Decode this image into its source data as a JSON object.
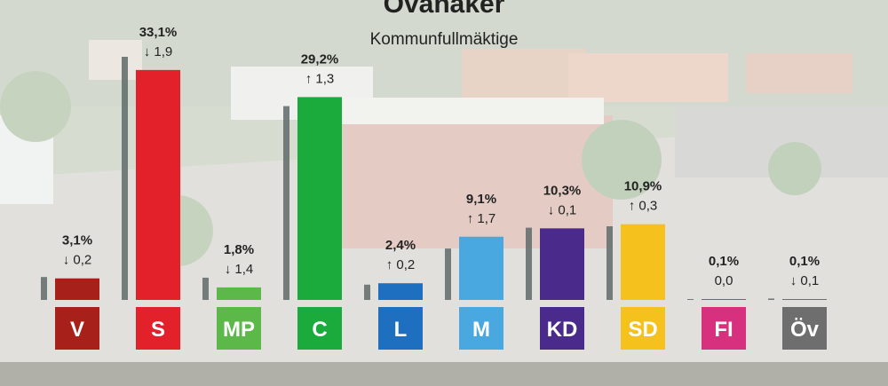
{
  "header": {
    "title": "Ovanåker",
    "subtitle": "Kommunfullmäktige"
  },
  "colors": {
    "overlay": "#ffffff",
    "prev_bar": "#5f6a6a",
    "text": "#222222"
  },
  "chart_data": {
    "type": "bar",
    "title": "Ovanåker",
    "subtitle": "Kommunfullmäktige",
    "categories": [
      "V",
      "S",
      "MP",
      "C",
      "L",
      "M",
      "KD",
      "SD",
      "FI",
      "Öv"
    ],
    "series": [
      {
        "values": [
          3.1,
          33.1,
          1.8,
          29.2,
          2.4,
          9.1,
          10.3,
          10.9,
          0.1,
          0.1
        ]
      },
      {
        "values": [
          3.3,
          35.0,
          3.2,
          27.9,
          2.2,
          7.4,
          10.4,
          10.6,
          0.1,
          0.2
        ]
      }
    ],
    "value_labels": [
      "3,1%",
      "33,1%",
      "1,8%",
      "29,2%",
      "2,4%",
      "9,1%",
      "10,3%",
      "10,9%",
      "0,1%",
      "0,1%"
    ],
    "change_labels": [
      "0,2",
      "1,9",
      "1,4",
      "1,3",
      "0,2",
      "1,7",
      "0,1",
      "0,3",
      "0,0",
      "0,1"
    ],
    "change_direction": [
      "down",
      "down",
      "down",
      "up",
      "up",
      "up",
      "down",
      "up",
      "none",
      "down"
    ],
    "colors": [
      "#a8201a",
      "#e3212b",
      "#5cb848",
      "#1aab3c",
      "#1f6fc0",
      "#4aa8e0",
      "#4a2a8a",
      "#f5c11c",
      "#d6307f",
      "#6e6e6e"
    ],
    "ylim": [
      0,
      36
    ],
    "grid": false,
    "legend": "none"
  }
}
